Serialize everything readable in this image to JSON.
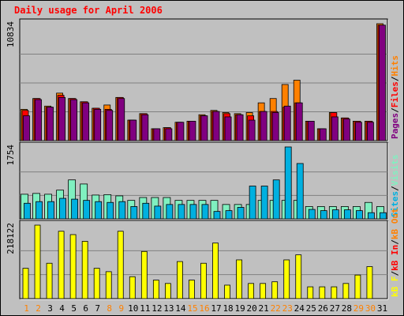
{
  "title": "Daily usage for April 2006",
  "colors": {
    "pages": "#800080",
    "files": "#ff0000",
    "hits": "#ff8000",
    "sites": "#00b0e0",
    "visits": "#80f0c0",
    "kbf": "#ffff00",
    "kbin": "#ff0000",
    "kbout": "#ff8000",
    "weekend_label": "#ff8000",
    "weekday_label": "#000000"
  },
  "chart_data": [
    {
      "type": "bar",
      "panel": "hits-files-pages",
      "ylabel_max": "10834",
      "ymax": 10834,
      "legend": [
        "Pages",
        "/",
        "Files",
        "/",
        "Hits"
      ],
      "categories": [
        "1",
        "2",
        "3",
        "4",
        "5",
        "6",
        "7",
        "8",
        "9",
        "10",
        "11",
        "12",
        "13",
        "14",
        "15",
        "16",
        "17",
        "18",
        "19",
        "20",
        "21",
        "22",
        "23",
        "24",
        "25",
        "26",
        "27",
        "28",
        "29",
        "30",
        "31"
      ],
      "series": [
        {
          "name": "Hits",
          "values": [
            2900,
            3900,
            3200,
            4400,
            3900,
            3600,
            3000,
            3300,
            4000,
            1900,
            2500,
            1100,
            1200,
            1700,
            1800,
            2400,
            2800,
            2600,
            2500,
            2600,
            3500,
            3900,
            5200,
            5600,
            1800,
            1100,
            2600,
            2100,
            1800,
            1800,
            10834
          ]
        },
        {
          "name": "Files",
          "values": [
            2800,
            3900,
            3100,
            4200,
            3900,
            3600,
            3000,
            2900,
            4000,
            1900,
            2500,
            1100,
            1200,
            1700,
            1800,
            2300,
            2700,
            2500,
            2400,
            2300,
            2700,
            2700,
            3100,
            3500,
            1800,
            1100,
            2600,
            2100,
            1800,
            1800,
            10700
          ]
        },
        {
          "name": "Pages",
          "values": [
            2300,
            3800,
            3100,
            4000,
            3800,
            3500,
            2900,
            2800,
            3900,
            1900,
            2400,
            1100,
            1100,
            1700,
            1800,
            2300,
            2700,
            2200,
            2400,
            1900,
            2700,
            2600,
            3200,
            3500,
            1800,
            1100,
            2200,
            2000,
            1700,
            1700,
            10700
          ]
        }
      ]
    },
    {
      "type": "bar",
      "panel": "visits-sites",
      "ylabel_max": "1754",
      "ymax": 1754,
      "legend": [
        "Sites",
        "/",
        "Visits"
      ],
      "categories": [
        "1",
        "2",
        "3",
        "4",
        "5",
        "6",
        "7",
        "8",
        "9",
        "10",
        "11",
        "12",
        "13",
        "14",
        "15",
        "16",
        "17",
        "18",
        "19",
        "20",
        "21",
        "22",
        "23",
        "24",
        "25",
        "26",
        "27",
        "28",
        "29",
        "30",
        "31"
      ],
      "series": [
        {
          "name": "Visits",
          "values": [
            600,
            620,
            600,
            700,
            950,
            850,
            580,
            590,
            560,
            450,
            520,
            520,
            520,
            450,
            450,
            450,
            450,
            350,
            350,
            350,
            450,
            450,
            450,
            450,
            300,
            300,
            300,
            300,
            300,
            400,
            300
          ]
        },
        {
          "name": "Sites",
          "values": [
            380,
            420,
            420,
            500,
            480,
            450,
            420,
            400,
            420,
            300,
            380,
            310,
            350,
            350,
            350,
            350,
            180,
            200,
            280,
            800,
            800,
            950,
            1754,
            1350,
            230,
            200,
            220,
            220,
            200,
            150,
            150
          ]
        }
      ]
    },
    {
      "type": "bar",
      "panel": "kbytes",
      "ylabel_max": "218122",
      "ymax": 218122,
      "legend": [
        "kB F",
        "/",
        "kB In",
        "/",
        "kB Out"
      ],
      "categories": [
        "1",
        "2",
        "3",
        "4",
        "5",
        "6",
        "7",
        "8",
        "9",
        "10",
        "11",
        "12",
        "13",
        "14",
        "15",
        "16",
        "17",
        "18",
        "19",
        "20",
        "21",
        "22",
        "23",
        "24",
        "25",
        "26",
        "27",
        "28",
        "29",
        "30",
        "31"
      ],
      "series": [
        {
          "name": "kB F",
          "values": [
            90000,
            218122,
            105000,
            200000,
            190000,
            170000,
            90000,
            80000,
            200000,
            65000,
            140000,
            55000,
            45000,
            110000,
            55000,
            105000,
            165000,
            40000,
            115000,
            45000,
            45000,
            50000,
            115000,
            130000,
            35000,
            35000,
            35000,
            45000,
            70000,
            95000,
            0
          ]
        }
      ]
    }
  ],
  "weekend_days": [
    1,
    2,
    8,
    9,
    15,
    16,
    22,
    23,
    29,
    30
  ]
}
